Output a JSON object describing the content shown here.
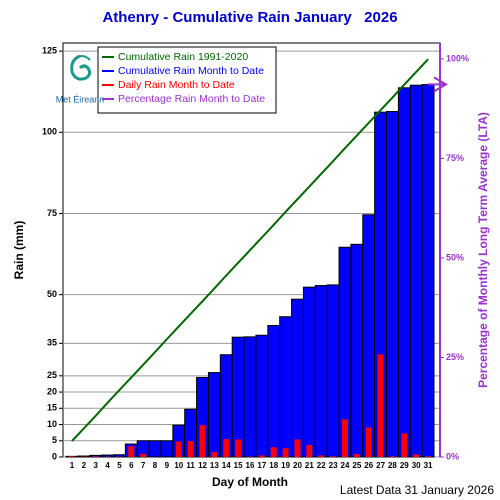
{
  "chart_data": {
    "type": "bar",
    "title": "Athenry - Cumulative Rain January   2026",
    "x_label": "Day of Month",
    "y_label": "Rain (mm)",
    "y2_label": "Percentage of Monthly Long Term Average (LTA)",
    "footer": "Latest Data 31 January 2026",
    "logo": "Met Éireann",
    "categories": [
      "1",
      "2",
      "3",
      "4",
      "5",
      "6",
      "7",
      "8",
      "9",
      "10",
      "11",
      "12",
      "13",
      "14",
      "15",
      "16",
      "17",
      "18",
      "19",
      "20",
      "21",
      "22",
      "23",
      "24",
      "25",
      "26",
      "27",
      "28",
      "29",
      "30",
      "31"
    ],
    "series": [
      {
        "name": "Cumulative Rain 1991-2020",
        "color": "#006600",
        "type": "line",
        "values": [
          4.9,
          8.8,
          12.7,
          16.7,
          20.6,
          24.5,
          28.4,
          32.3,
          36.3,
          40.2,
          44.1,
          48.0,
          51.9,
          55.9,
          59.8,
          63.7,
          67.6,
          71.5,
          75.5,
          79.4,
          83.3,
          87.2,
          91.1,
          95.1,
          99.0,
          102.9,
          106.8,
          110.7,
          114.7,
          118.6,
          122.5
        ]
      },
      {
        "name": "Cumulative Rain Month to Date",
        "color": "#0000ff",
        "type": "bar",
        "values": [
          0.2,
          0.3,
          0.5,
          0.6,
          0.7,
          4.0,
          5.0,
          5.0,
          5.0,
          9.8,
          14.7,
          24.5,
          26.0,
          31.5,
          36.9,
          37.0,
          37.5,
          40.5,
          43.2,
          48.6,
          52.3,
          52.8,
          53.0,
          64.6,
          65.5,
          74.6,
          106.2,
          106.4,
          113.7,
          114.5,
          114.7
        ]
      },
      {
        "name": "Daily Rain Month to Date",
        "color": "#ff0000",
        "type": "bar",
        "values": [
          0.2,
          0.1,
          0.2,
          0.1,
          0.1,
          3.3,
          1.0,
          0,
          0,
          4.8,
          4.9,
          9.8,
          1.5,
          5.5,
          5.4,
          0.1,
          0.5,
          3.0,
          2.7,
          5.4,
          3.7,
          0.5,
          0.2,
          11.6,
          0.9,
          9.1,
          31.6,
          0.2,
          7.3,
          0.8,
          0.2
        ]
      },
      {
        "name": "Percentage Rain Month to Date",
        "color": "#9933cc",
        "type": "line",
        "axis": "y2",
        "values": [
          null,
          null,
          null,
          null,
          null,
          null,
          null,
          null,
          null,
          null,
          null,
          null,
          null,
          null,
          null,
          null,
          null,
          null,
          null,
          null,
          null,
          null,
          null,
          null,
          null,
          null,
          null,
          null,
          null,
          null,
          93.6
        ]
      }
    ],
    "ylim": [
      0,
      127.5
    ],
    "yticks": [
      0,
      5,
      10,
      15,
      20,
      25,
      35,
      50,
      75,
      100,
      125
    ],
    "y2lim": [
      0,
      104
    ],
    "y2ticks": [
      {
        "value": 0,
        "label": "0%"
      },
      {
        "value": 25,
        "label": "25%"
      },
      {
        "value": 50,
        "label": "50%"
      },
      {
        "value": 75,
        "label": "75%"
      },
      {
        "value": 100,
        "label": "100%"
      }
    ],
    "grid": true
  }
}
